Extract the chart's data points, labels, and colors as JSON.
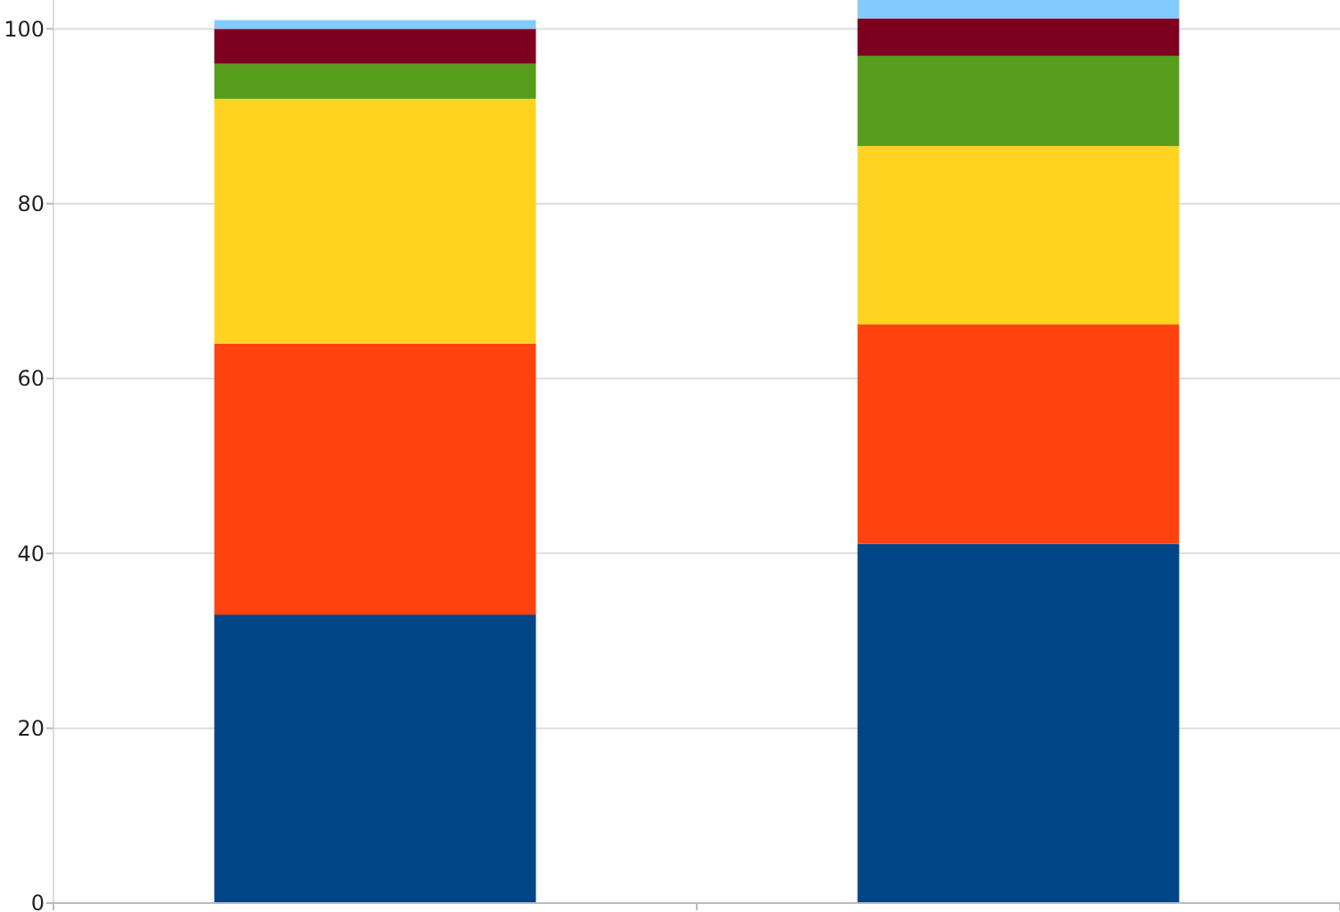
{
  "chart_data": {
    "type": "bar",
    "stacked": true,
    "categories": [
      null,
      null
    ],
    "series": [
      {
        "color": "#004586",
        "values": [
          33,
          41.1
        ]
      },
      {
        "color": "#ff420e",
        "values": [
          31,
          25.1
        ]
      },
      {
        "color": "#ffd320",
        "values": [
          28,
          20.4
        ]
      },
      {
        "color": "#579d1c",
        "values": [
          4,
          10.3
        ]
      },
      {
        "color": "#7e0021",
        "values": [
          4,
          4.3
        ]
      },
      {
        "color": "#83caff",
        "values": [
          1,
          2.1
        ]
      }
    ],
    "ylim": [
      0,
      103.3
    ],
    "yticks": [
      0,
      20,
      40,
      60,
      80,
      100
    ],
    "grid": "y"
  }
}
